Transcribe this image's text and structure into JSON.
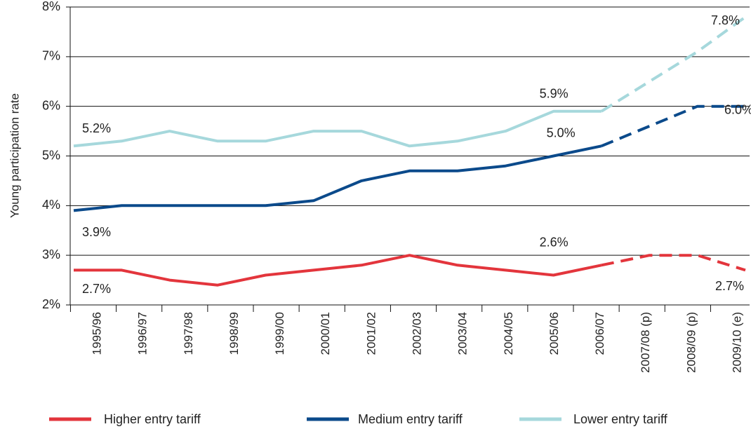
{
  "chart_data": {
    "type": "line",
    "y_label": "Young participation rate",
    "categories": [
      "1995/96",
      "1996/97",
      "1997/98",
      "1998/99",
      "1999/00",
      "2000/01",
      "2001/02",
      "2002/03",
      "2003/04",
      "2004/05",
      "2005/06",
      "2006/07",
      "2007/08 (p)",
      "2008/09 (p)",
      "2009/10 (e)"
    ],
    "dashed_from": 11,
    "series": [
      {
        "name": "Higher entry tariff",
        "color": "#e3353c",
        "values": [
          2.7,
          2.7,
          2.5,
          2.4,
          2.6,
          2.7,
          2.8,
          3.0,
          2.8,
          2.7,
          2.6,
          2.8,
          3.0,
          3.0,
          2.7
        ],
        "value_labels": [
          "2.7%",
          null,
          null,
          null,
          null,
          null,
          null,
          null,
          null,
          null,
          "2.6%",
          null,
          null,
          null,
          "2.7%"
        ]
      },
      {
        "name": "Medium entry tariff",
        "color": "#0b4a8b",
        "values": [
          3.9,
          4.0,
          4.0,
          4.0,
          4.0,
          4.1,
          4.5,
          4.7,
          4.7,
          4.8,
          5.0,
          5.2,
          5.6,
          6.0,
          6.0
        ],
        "value_labels": [
          "3.9%",
          null,
          null,
          null,
          null,
          null,
          null,
          null,
          null,
          null,
          "5.0%",
          null,
          null,
          null,
          "6.0%"
        ]
      },
      {
        "name": "Lower entry tariff",
        "color": "#a6d8dc",
        "values": [
          5.2,
          5.3,
          5.5,
          5.3,
          5.3,
          5.5,
          5.5,
          5.2,
          5.3,
          5.5,
          5.9,
          5.9,
          6.5,
          7.1,
          7.8
        ],
        "value_labels": [
          "5.2%",
          null,
          null,
          null,
          null,
          null,
          null,
          null,
          null,
          null,
          "5.9%",
          null,
          null,
          null,
          "7.8%"
        ]
      }
    ],
    "ylim": [
      2,
      8
    ],
    "yticks": [
      {
        "value": 2,
        "label": "2%"
      },
      {
        "value": 3,
        "label": "3%"
      },
      {
        "value": 4,
        "label": "4%"
      },
      {
        "value": 5,
        "label": "5%"
      },
      {
        "value": 6,
        "label": "6%"
      },
      {
        "value": 7,
        "label": "7%"
      },
      {
        "value": 8,
        "label": "8%"
      }
    ],
    "grid": true
  }
}
